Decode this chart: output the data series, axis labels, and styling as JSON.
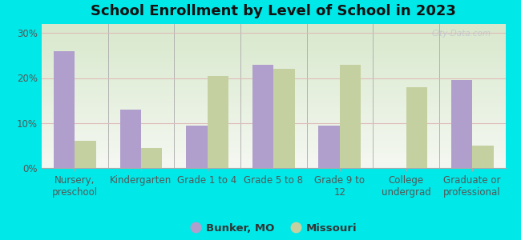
{
  "title": "School Enrollment by Level of School in 2023",
  "categories": [
    "Nursery,\npreschool",
    "Kindergarten",
    "Grade 1 to 4",
    "Grade 5 to 8",
    "Grade 9 to\n12",
    "College\nundergrad",
    "Graduate or\nprofessional"
  ],
  "bunker_values": [
    26,
    13,
    9.5,
    23,
    9.5,
    0,
    19.5
  ],
  "missouri_values": [
    6,
    4.5,
    20.5,
    22,
    23,
    18,
    5
  ],
  "bunker_color": "#b09fcc",
  "missouri_color": "#c5d0a0",
  "background_color": "#00e8e8",
  "plot_bg_gradient_top": "#d8e8cc",
  "plot_bg_gradient_bottom": "#f5f8f2",
  "yticks": [
    0,
    10,
    20,
    30
  ],
  "ylabels": [
    "0%",
    "10%",
    "20%",
    "30%"
  ],
  "ylim": [
    0,
    32
  ],
  "legend_labels": [
    "Bunker, MO",
    "Missouri"
  ],
  "watermark": "City-Data.com",
  "bar_width": 0.32,
  "title_fontsize": 13,
  "axis_fontsize": 8.5,
  "legend_fontsize": 9.5
}
